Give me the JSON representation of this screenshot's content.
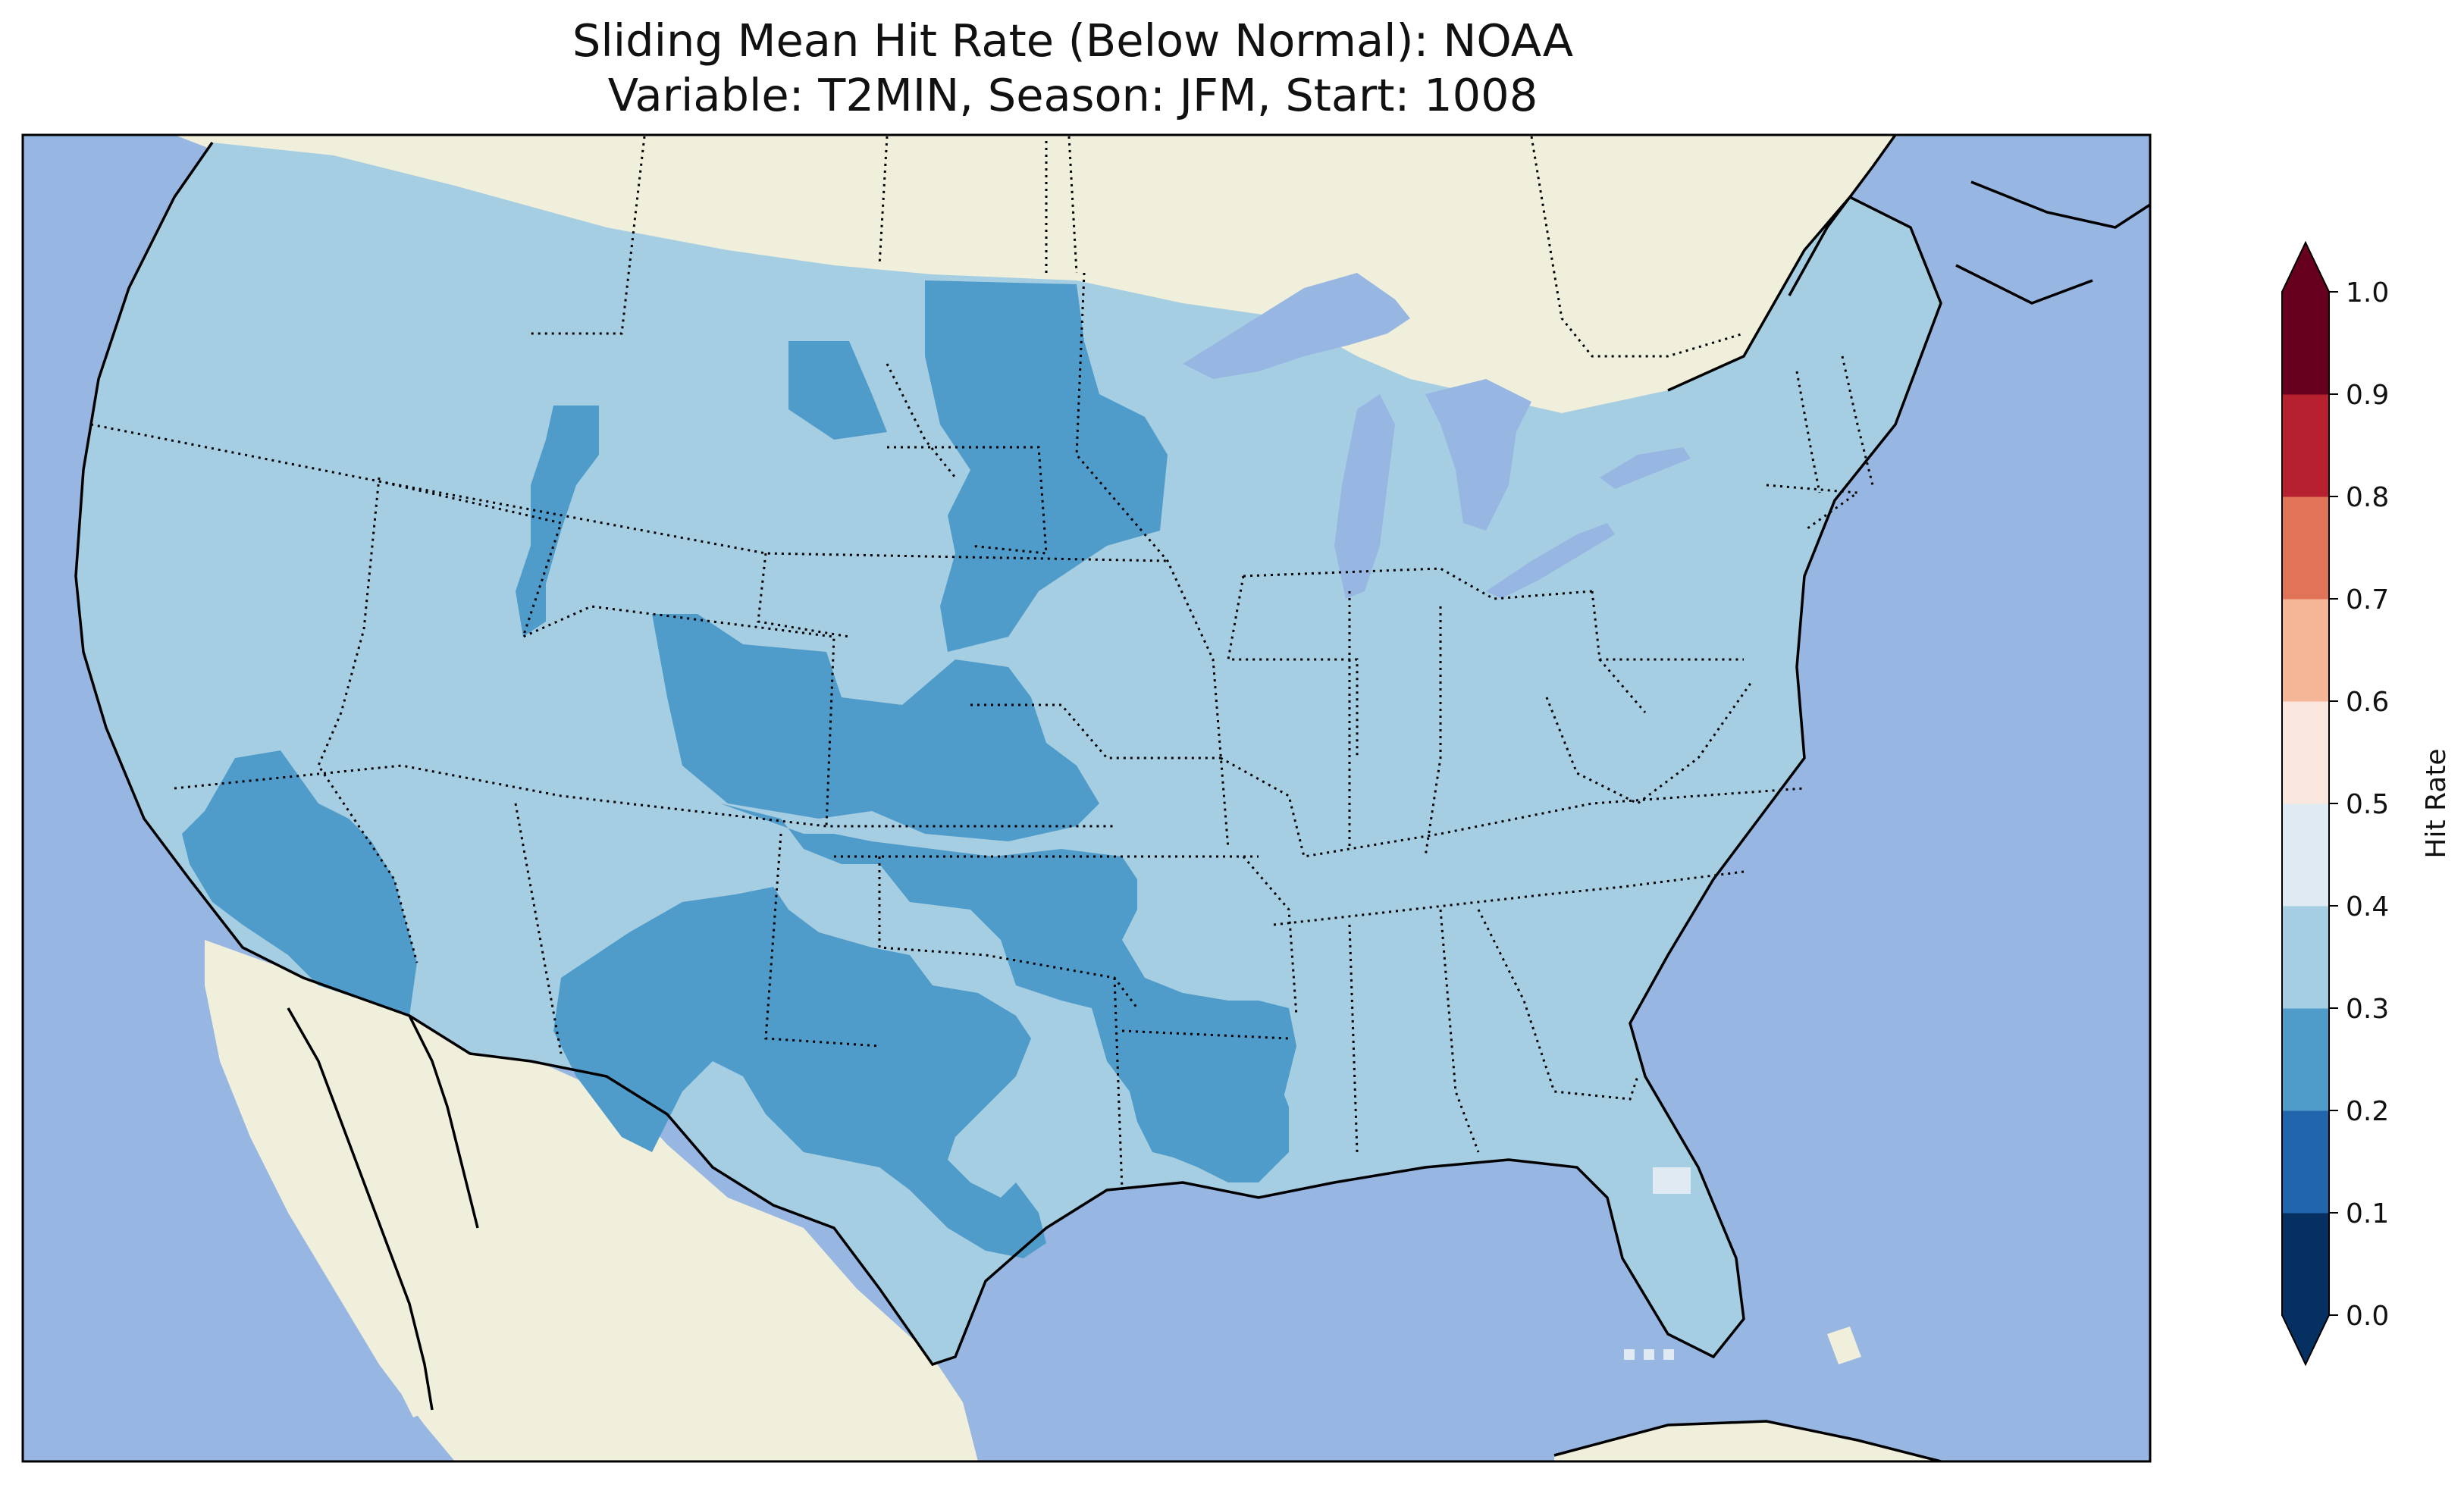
{
  "title": {
    "line1": "Sliding Mean Hit Rate (Below Normal): NOAA",
    "line2": "Variable: T2MIN, Season: JFM, Start: 1008"
  },
  "colors": {
    "ocean": "#97b6e1",
    "land": "#efefdb",
    "border": "#000000"
  },
  "colorbar": {
    "label": "Hit Rate",
    "ticks": [
      "0.0",
      "0.1",
      "0.2",
      "0.3",
      "0.4",
      "0.5",
      "0.6",
      "0.7",
      "0.8",
      "0.9",
      "1.0"
    ],
    "bins": [
      {
        "range": [
          0.0,
          0.1
        ],
        "color": "#053061"
      },
      {
        "range": [
          0.1,
          0.2
        ],
        "color": "#2166ac"
      },
      {
        "range": [
          0.2,
          0.3
        ],
        "color": "#4f9bc9"
      },
      {
        "range": [
          0.3,
          0.4
        ],
        "color": "#a6cee3"
      },
      {
        "range": [
          0.4,
          0.5
        ],
        "color": "#e0eaf2"
      },
      {
        "range": [
          0.5,
          0.6
        ],
        "color": "#f9e6dd"
      },
      {
        "range": [
          0.6,
          0.7
        ],
        "color": "#f5b597"
      },
      {
        "range": [
          0.7,
          0.8
        ],
        "color": "#e07358"
      },
      {
        "range": [
          0.8,
          0.9
        ],
        "color": "#b6202f"
      },
      {
        "range": [
          0.9,
          1.0
        ],
        "color": "#67001f"
      }
    ],
    "extend": "both"
  },
  "map_data": {
    "background_hit_rate_bin": "0.3-0.4",
    "regions_0_2_to_0_3": [
      "northern Rockies (Idaho–Montana border)",
      "central Montana",
      "North Dakota and western Minnesota",
      "Wyoming–Colorado",
      "Kansas and Nebraska",
      "southern Nevada and western Arizona",
      "New Mexico, Texas and Oklahoma",
      "Louisiana and Arkansas"
    ],
    "regions_0_4_to_0_5": [
      "central Florida",
      "south Florida keys"
    ]
  }
}
